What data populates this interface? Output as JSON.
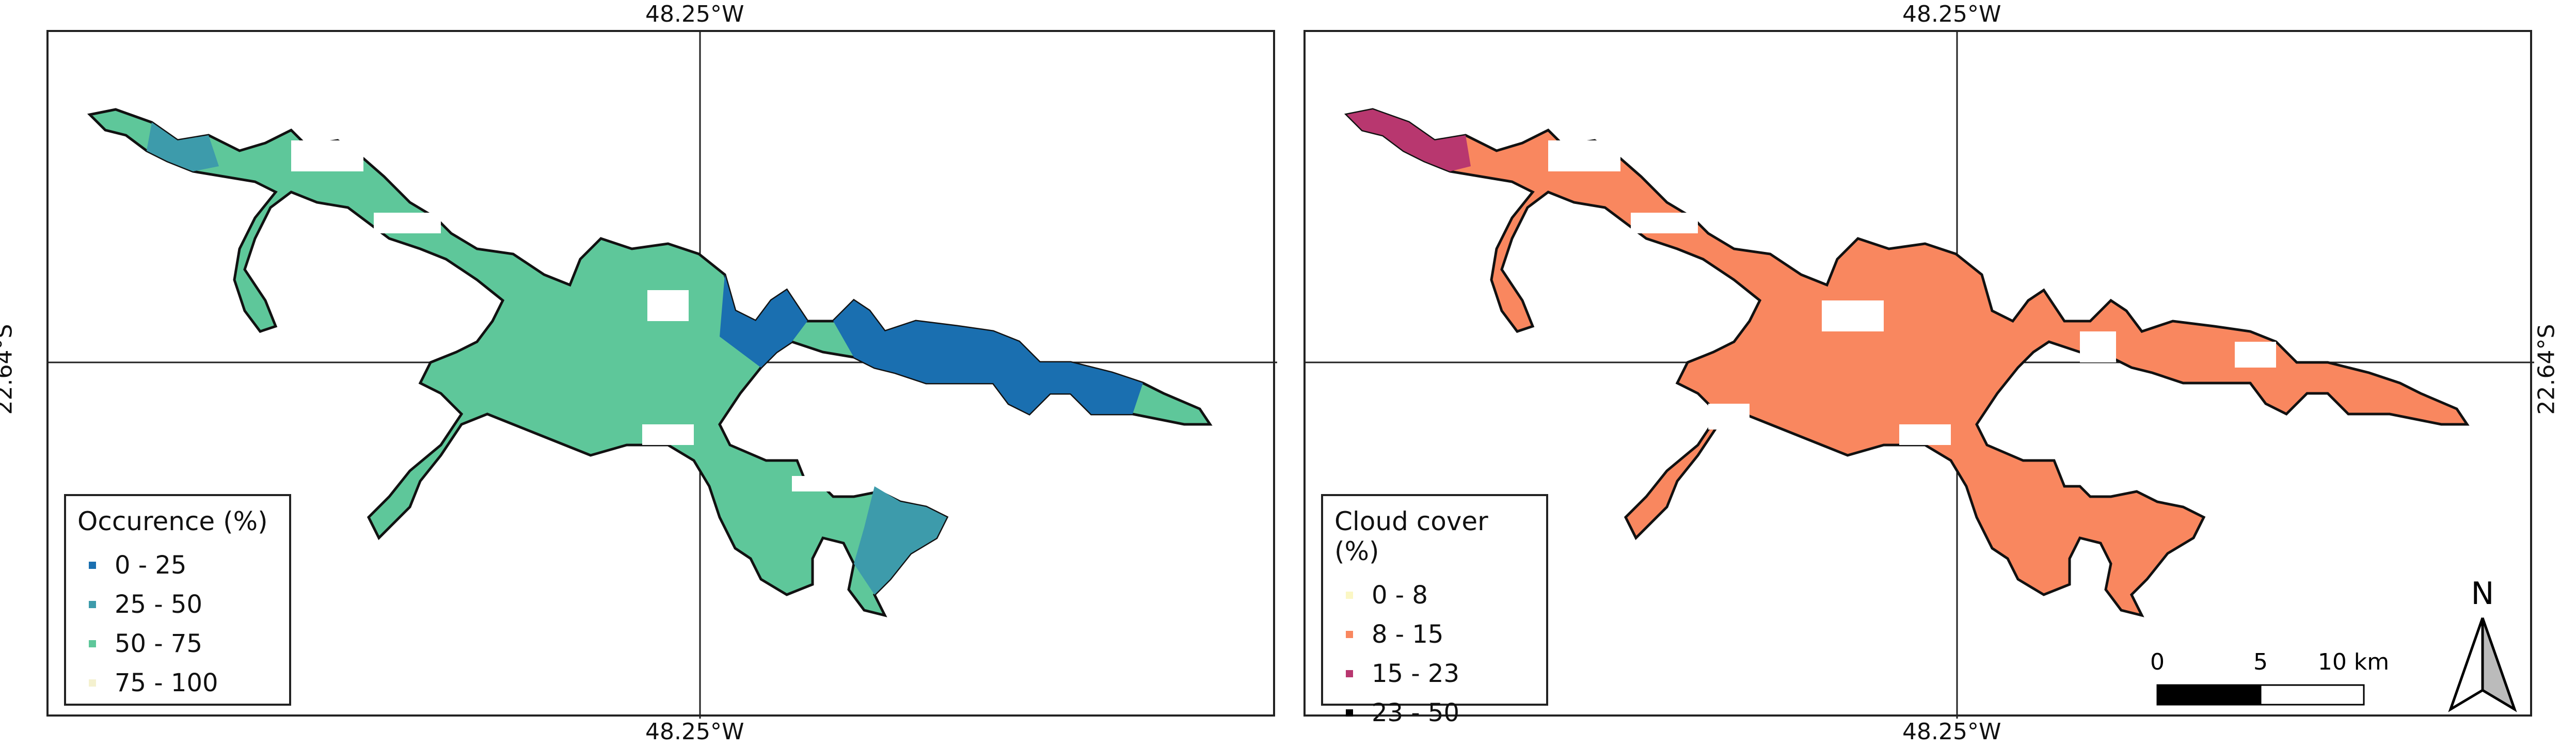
{
  "coordinates": {
    "longitude_label": "48.25°W",
    "latitude_label": "22.64°S"
  },
  "left_map": {
    "legend": {
      "title": "Occurence (%)",
      "items": [
        {
          "label": "0 - 25",
          "color": "#1a6fb0"
        },
        {
          "label": "25 - 50",
          "color": "#3d9bab"
        },
        {
          "label": "50 - 75",
          "color": "#5ec79a"
        },
        {
          "label": "75 - 100",
          "color": "#f4f1cf"
        }
      ]
    },
    "water_color": "#5ec79a",
    "deep_color": "#1a6fb0",
    "mid_color": "#3d9bab"
  },
  "right_map": {
    "legend": {
      "title": "Cloud cover (%)",
      "items": [
        {
          "label": "0 - 8",
          "color": "#fbf7c4"
        },
        {
          "label": "8 - 15",
          "color": "#f9875f"
        },
        {
          "label": "15 - 23",
          "color": "#b8376f"
        },
        {
          "label": "23 - 50",
          "color": "#000000"
        }
      ]
    },
    "water_color": "#f9875f",
    "accent_color": "#b8376f"
  },
  "scale_bar": {
    "ticks": [
      "0",
      "5",
      "10 km"
    ]
  },
  "north_arrow": {
    "label": "N"
  }
}
